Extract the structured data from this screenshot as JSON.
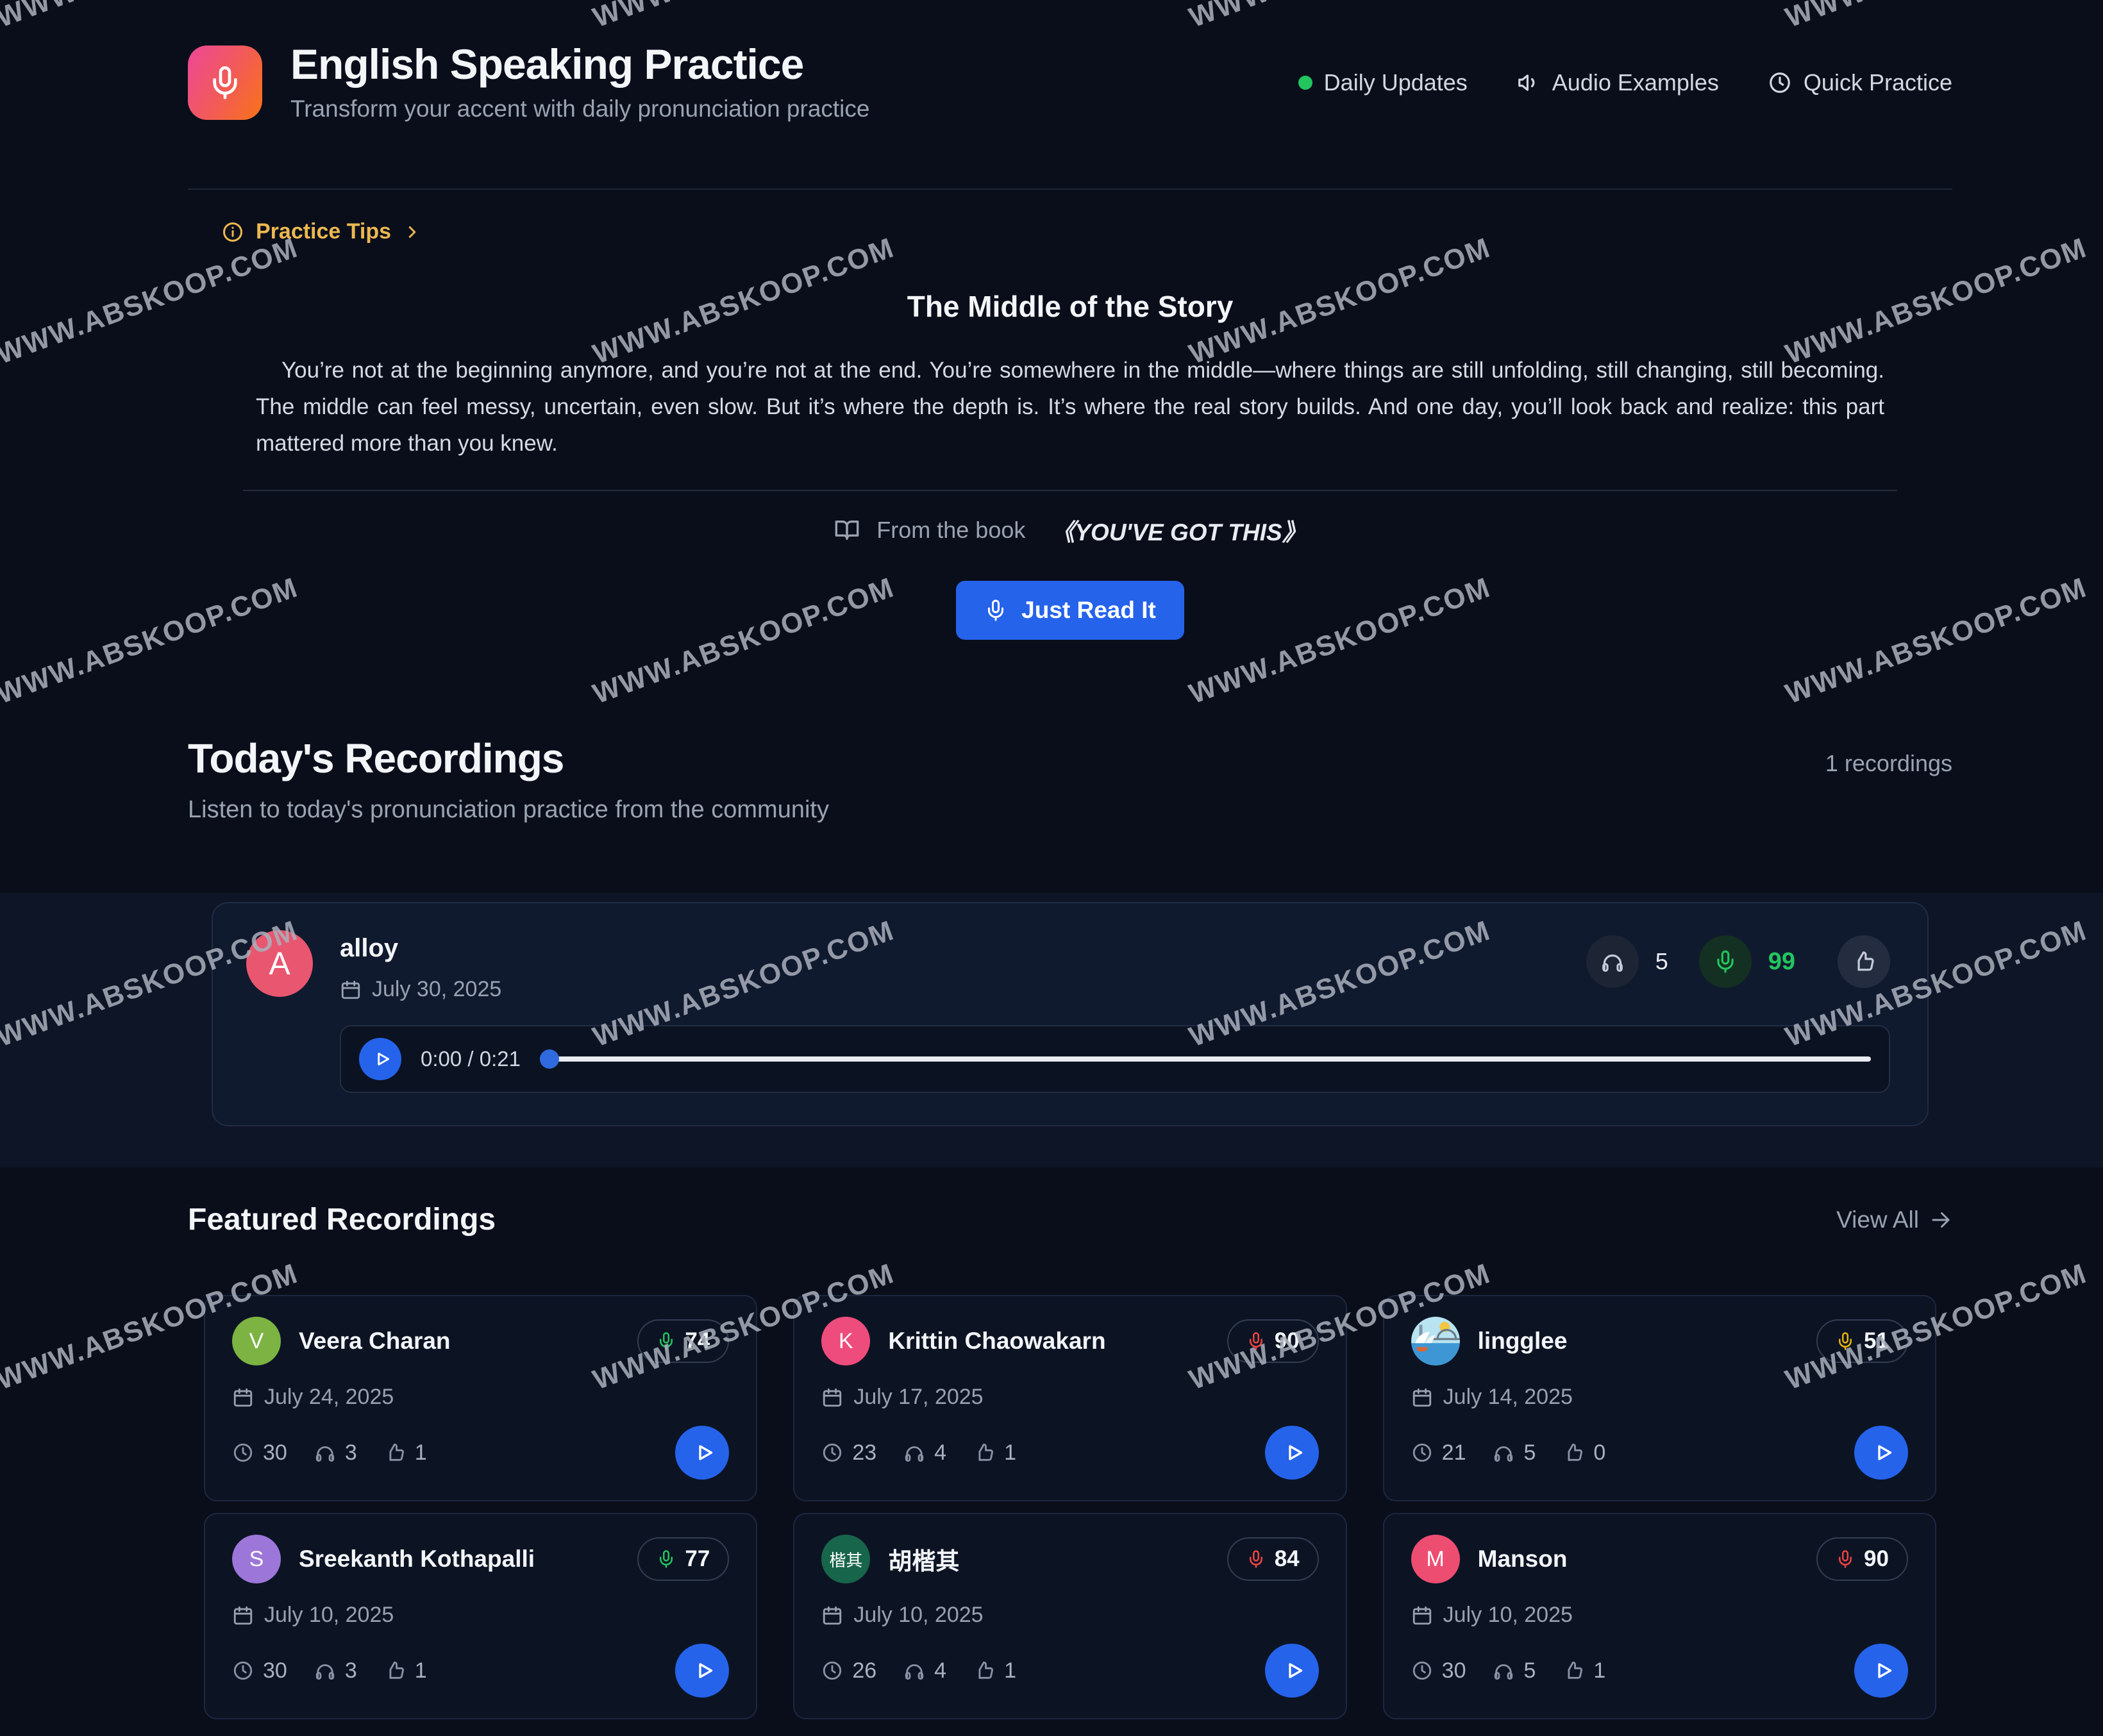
{
  "watermark": {
    "text": "WWW.ABSKOOP.COM"
  },
  "header": {
    "title": "English Speaking Practice",
    "subtitle": "Transform your accent with daily pronunciation practice",
    "nav": [
      {
        "icon": "green-dot",
        "label": "Daily Updates"
      },
      {
        "icon": "speaker-icon",
        "label": "Audio Examples"
      },
      {
        "icon": "clock-icon",
        "label": "Quick Practice"
      }
    ]
  },
  "tips": {
    "label": "Practice Tips"
  },
  "story": {
    "title": "The Middle of the Story",
    "body": "You’re not at the beginning anymore, and you’re not at the end. You’re somewhere in the middle—where things are still unfolding, still changing, still becoming. The middle can feel messy, uncertain, even slow. But it’s where the depth is. It’s where the real story builds. And one day, you’ll look back and realize: this part mattered more than you knew.",
    "source_prefix": "From the book",
    "source_title": "《YOU'VE GOT THIS》",
    "cta": "Just Read It"
  },
  "today": {
    "title": "Today's Recordings",
    "subtitle": "Listen to today's pronunciation practice from the community",
    "count": "1 recordings",
    "recording": {
      "name": "alloy",
      "avatar_letter": "A",
      "avatar_color": "#e8566f",
      "date": "July 30, 2025",
      "listen_count": "5",
      "score": "99",
      "time": "0:00 / 0:21"
    }
  },
  "featured": {
    "title": "Featured Recordings",
    "view_all": "View All",
    "cards": [
      {
        "name": "Veera Charan",
        "avatar_letter": "V",
        "avatar_color": "#7cb342",
        "score": "74",
        "score_color": "#22c55e",
        "date": "July 24, 2025",
        "duration": "30",
        "listens": "3",
        "likes": "1"
      },
      {
        "name": "Krittin Chaowakarn",
        "avatar_letter": "K",
        "avatar_color": "#ee4c7c",
        "score": "90",
        "score_color": "#ef4444",
        "date": "July 17, 2025",
        "duration": "23",
        "listens": "4",
        "likes": "1"
      },
      {
        "name": "lingglee",
        "avatar_type": "scene",
        "avatar_letter": "",
        "avatar_color": "#b8e4f2",
        "score": "51",
        "score_color": "#eab308",
        "date": "July 14, 2025",
        "duration": "21",
        "listens": "5",
        "likes": "0"
      },
      {
        "name": "Sreekanth Kothapalli",
        "avatar_letter": "S",
        "avatar_color": "#9d76d9",
        "score": "77",
        "score_color": "#22c55e",
        "date": "July 10, 2025",
        "duration": "30",
        "listens": "3",
        "likes": "1"
      },
      {
        "name": "胡楷其",
        "avatar_letter": "楷其",
        "avatar_color": "#17654a",
        "score": "84",
        "score_color": "#ef4444",
        "date": "July 10, 2025",
        "duration": "26",
        "listens": "4",
        "likes": "1"
      },
      {
        "name": "Manson",
        "avatar_letter": "M",
        "avatar_color": "#ee4d72",
        "score": "90",
        "score_color": "#ef4444",
        "date": "July 10, 2025",
        "duration": "30",
        "listens": "5",
        "likes": "1"
      }
    ]
  }
}
